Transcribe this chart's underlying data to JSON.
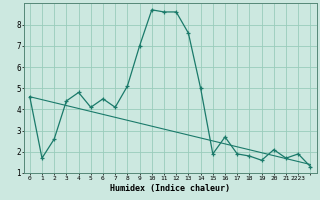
{
  "xlabel": "Humidex (Indice chaleur)",
  "background_color": "#cce8e0",
  "grid_color": "#99ccbb",
  "line_color": "#1a7a6a",
  "line1_x": [
    0,
    1,
    2,
    3,
    4,
    5,
    6,
    7,
    8,
    9,
    10,
    11,
    12,
    13,
    14,
    15,
    16,
    17,
    18,
    19,
    20,
    21,
    22,
    23
  ],
  "line1_y": [
    4.6,
    1.7,
    2.6,
    4.4,
    4.8,
    4.1,
    4.5,
    4.1,
    5.1,
    7.0,
    8.7,
    8.6,
    8.6,
    7.6,
    5.0,
    1.9,
    2.7,
    1.9,
    1.8,
    1.6,
    2.1,
    1.7,
    1.9,
    1.3
  ],
  "trend_x": [
    0,
    23
  ],
  "trend_y": [
    4.6,
    1.4
  ],
  "ylim": [
    1,
    9
  ],
  "xlim": [
    -0.5,
    23.5
  ],
  "yticks": [
    1,
    2,
    3,
    4,
    5,
    6,
    7,
    8
  ],
  "xticks": [
    0,
    1,
    2,
    3,
    4,
    5,
    6,
    7,
    8,
    9,
    10,
    11,
    12,
    13,
    14,
    15,
    16,
    17,
    18,
    19,
    20,
    21,
    22,
    23
  ],
  "xtick_labels": [
    "0",
    "1",
    "2",
    "3",
    "4",
    "5",
    "6",
    "7",
    "8",
    "9",
    "10",
    "11",
    "12",
    "13",
    "14",
    "15",
    "16",
    "17",
    "18",
    "19",
    "20",
    "21",
    "2223",
    ""
  ]
}
